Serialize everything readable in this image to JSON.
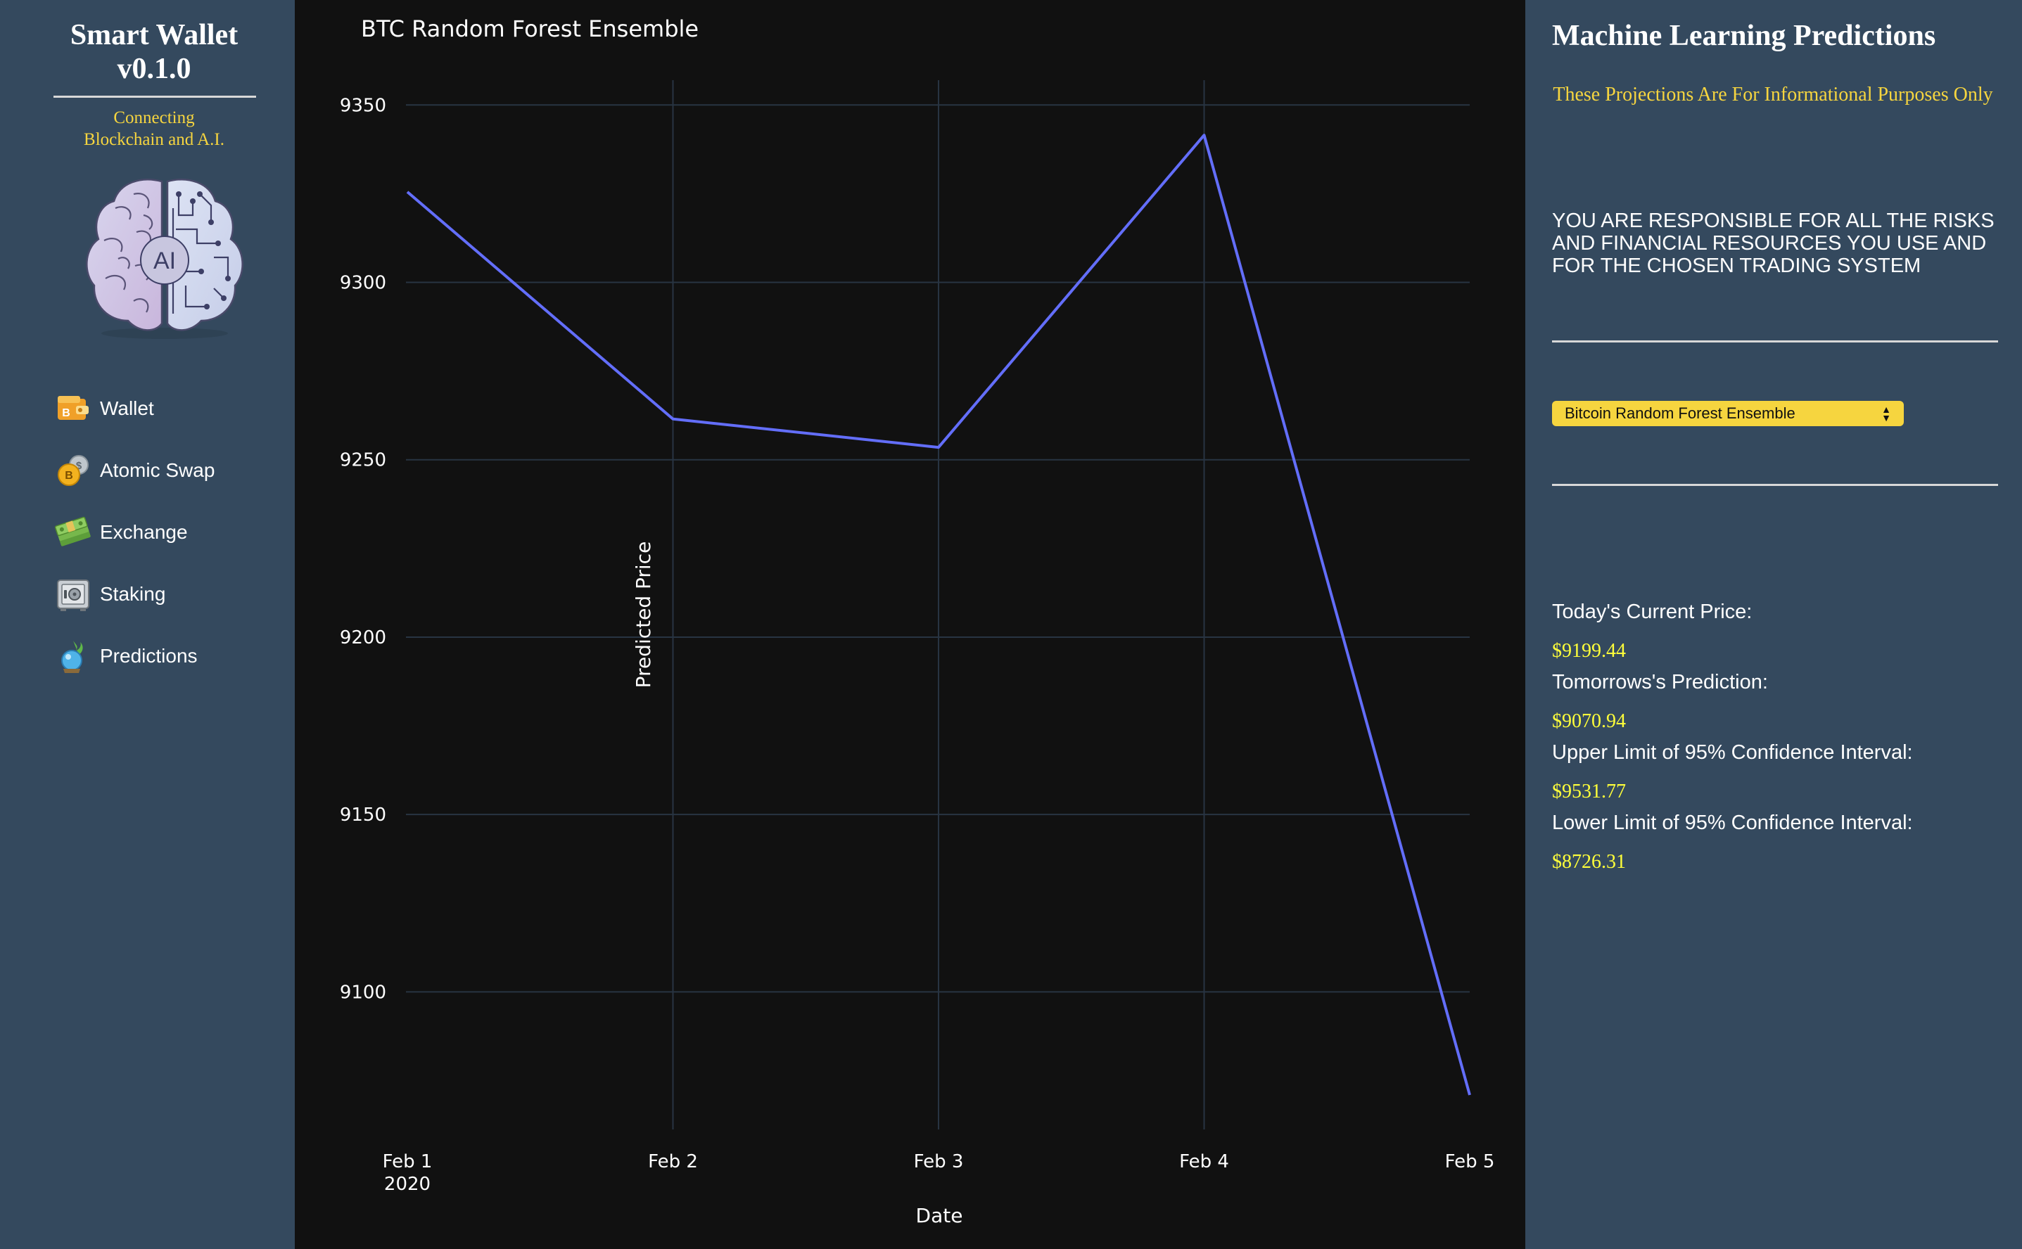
{
  "sidebar": {
    "title_line1": "Smart Wallet",
    "title_line2": "v0.1.0",
    "tagline_line1": "Connecting",
    "tagline_line2": "Blockchain and A.I.",
    "logo_text": "AI",
    "logo_icon": "ai-brain-logo",
    "nav": [
      {
        "label": "Wallet",
        "icon": "wallet-icon"
      },
      {
        "label": "Atomic Swap",
        "icon": "coin-swap-icon"
      },
      {
        "label": "Exchange",
        "icon": "money-stack-icon"
      },
      {
        "label": "Staking",
        "icon": "safe-icon"
      },
      {
        "label": "Predictions",
        "icon": "crystal-ball-icon"
      }
    ]
  },
  "chart_data": {
    "type": "line",
    "title": "BTC Random Forest Ensemble",
    "xlabel": "Date",
    "ylabel": "Predicted Price",
    "x": [
      "2020-02-01",
      "2020-02-02",
      "2020-02-03",
      "2020-02-04",
      "2020-02-05"
    ],
    "x_tick_labels": [
      "Feb 1",
      "Feb 2",
      "Feb 3",
      "Feb 4",
      "Feb 5"
    ],
    "x_tick_year": "2020",
    "series": [
      {
        "values": [
          9325.5,
          9261.5,
          9253.5,
          9341.5,
          9070.94
        ],
        "color": "#636efa"
      }
    ],
    "y_ticks": [
      9100,
      9150,
      9200,
      9250,
      9300,
      9350
    ],
    "ylim": [
      9064,
      9357
    ],
    "grid": true,
    "background": "#111111",
    "grid_color": "#283442"
  },
  "panel": {
    "title": "Machine Learning Predictions",
    "disclaimer": "These Projections Are For Informational Purposes Only",
    "warning": "YOU ARE RESPONSIBLE FOR ALL THE RISKS AND FINANCIAL RESOURCES YOU USE AND FOR THE CHOSEN TRADING SYSTEM",
    "model_select": {
      "selected": "Bitcoin Random Forest Ensemble"
    },
    "stats": [
      {
        "label": "Today's Current Price:",
        "value": "$9199.44"
      },
      {
        "label": "Tomorrows's Prediction:",
        "value": "$9070.94"
      },
      {
        "label": "Upper Limit of 95% Confidence Interval:",
        "value": "$9531.77"
      },
      {
        "label": "Lower Limit of 95% Confidence Interval:",
        "value": "$8726.31"
      }
    ]
  },
  "colors": {
    "sidebar_bg": "#34495e",
    "accent_yellow": "#f6d53f",
    "value_yellow": "#ffff3a",
    "line": "#636efa"
  }
}
